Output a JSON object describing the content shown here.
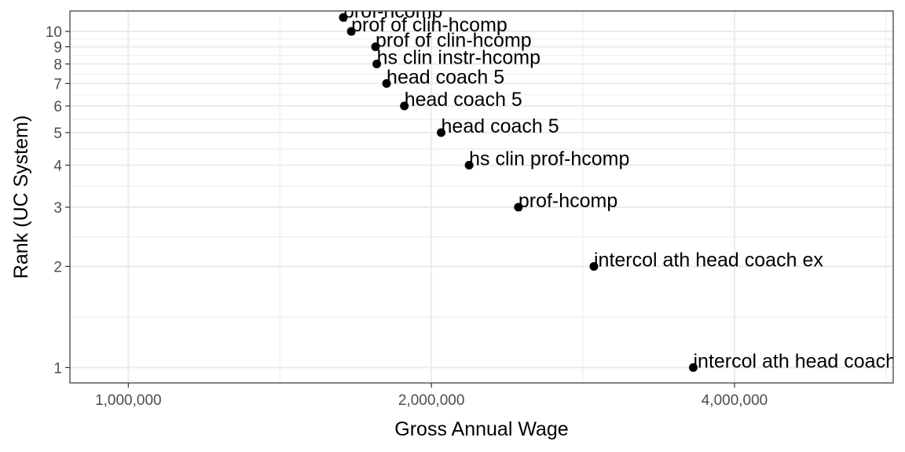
{
  "chart_data": {
    "type": "scatter",
    "title": "",
    "xlabel": "Gross Annual Wage",
    "ylabel": "Rank (UC System)",
    "x_scale": "log10",
    "y_scale": "log10",
    "xlim": [
      875000,
      5750000
    ],
    "ylim": [
      0.9,
      11.5
    ],
    "x_ticks": [
      {
        "value": 1000000,
        "label": "1,000,000"
      },
      {
        "value": 2000000,
        "label": "2,000,000"
      },
      {
        "value": 4000000,
        "label": "4,000,000"
      }
    ],
    "x_minor_ticks": [
      1414214,
      2828427,
      5656854
    ],
    "y_ticks": [
      {
        "value": 1,
        "label": "1"
      },
      {
        "value": 2,
        "label": "2"
      },
      {
        "value": 3,
        "label": "3"
      },
      {
        "value": 4,
        "label": "4"
      },
      {
        "value": 5,
        "label": "5"
      },
      {
        "value": 6,
        "label": "6"
      },
      {
        "value": 7,
        "label": "7"
      },
      {
        "value": 8,
        "label": "8"
      },
      {
        "value": 9,
        "label": "9"
      },
      {
        "value": 10,
        "label": "10"
      }
    ],
    "y_minor_ticks": [
      1.414,
      2.449,
      3.464,
      4.472,
      5.477,
      6.481,
      7.483,
      8.485,
      9.487
    ],
    "grid": true,
    "points": [
      {
        "rank": 1,
        "wage": 3640000,
        "label": "intercol ath head coach ex"
      },
      {
        "rank": 2,
        "wage": 2900000,
        "label": "intercol ath head coach ex"
      },
      {
        "rank": 3,
        "wage": 2440000,
        "label": "prof-hcomp"
      },
      {
        "rank": 4,
        "wage": 2180000,
        "label": "hs clin prof-hcomp"
      },
      {
        "rank": 5,
        "wage": 2045000,
        "label": "head coach 5"
      },
      {
        "rank": 6,
        "wage": 1880000,
        "label": "head coach 5"
      },
      {
        "rank": 7,
        "wage": 1805000,
        "label": "head coach 5"
      },
      {
        "rank": 8,
        "wage": 1765000,
        "label": "hs clin instr-hcomp"
      },
      {
        "rank": 9,
        "wage": 1760000,
        "label": "prof of clin-hcomp"
      },
      {
        "rank": 10,
        "wage": 1665000,
        "label": "prof of clin-hcomp"
      },
      {
        "rank": 11,
        "wage": 1635000,
        "label": "prof-hcomp"
      }
    ]
  }
}
